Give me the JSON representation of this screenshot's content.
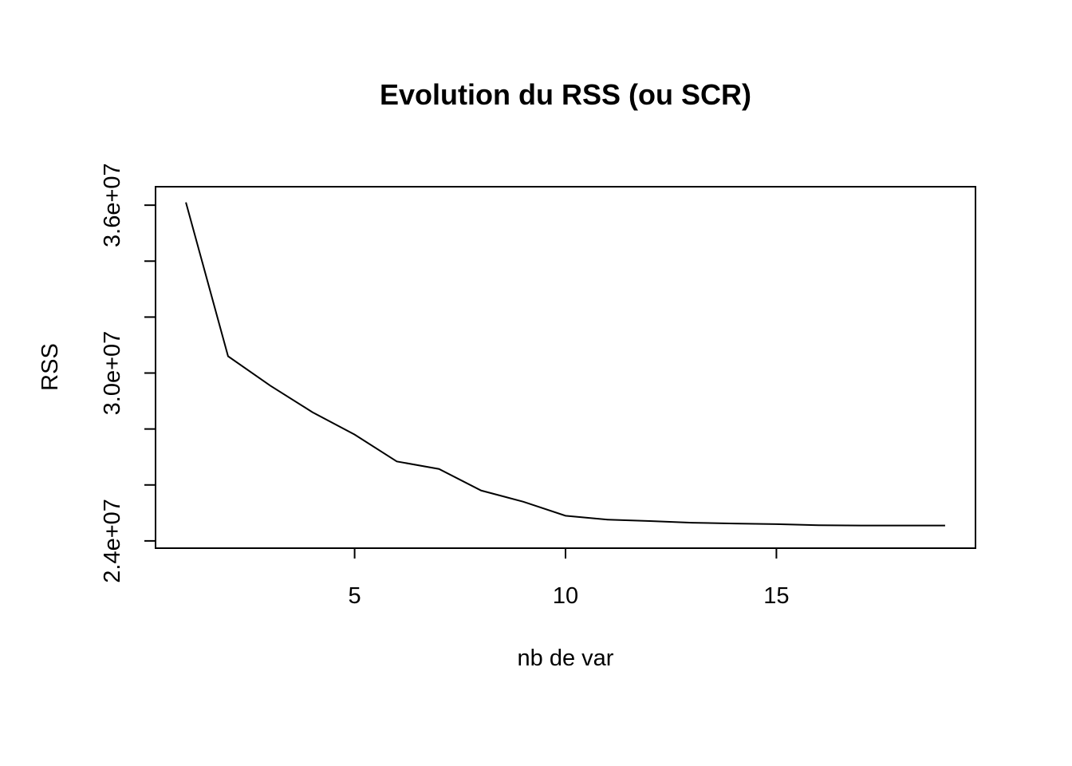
{
  "chart_data": {
    "type": "line",
    "title": "Evolution du RSS (ou SCR)",
    "xlabel": "nb de var",
    "ylabel": "RSS",
    "x": [
      1,
      2,
      3,
      4,
      5,
      6,
      7,
      8,
      9,
      10,
      11,
      12,
      13,
      14,
      15,
      16,
      17,
      18,
      19
    ],
    "series": [
      {
        "values": [
          36100000,
          30600000,
          29550000,
          28600000,
          27800000,
          26840000,
          26570000,
          25800000,
          25400000,
          24900000,
          24760000,
          24710000,
          24650000,
          24620000,
          24600000,
          24560000,
          24550000,
          24550000,
          24550000
        ]
      }
    ],
    "xlim": [
      0.28,
      19.72
    ],
    "ylim": [
      23740000,
      36660000
    ],
    "xticks": [
      5,
      10,
      15
    ],
    "xtick_labels": [
      "5",
      "10",
      "15"
    ],
    "yticks": [
      24000000,
      26000000,
      28000000,
      30000000,
      32000000,
      34000000,
      36000000
    ],
    "ytick_labels": [
      "2.4e+07",
      "",
      "",
      "3.0e+07",
      "",
      "",
      "3.6e+07"
    ],
    "grid": false,
    "color": "#000000"
  }
}
